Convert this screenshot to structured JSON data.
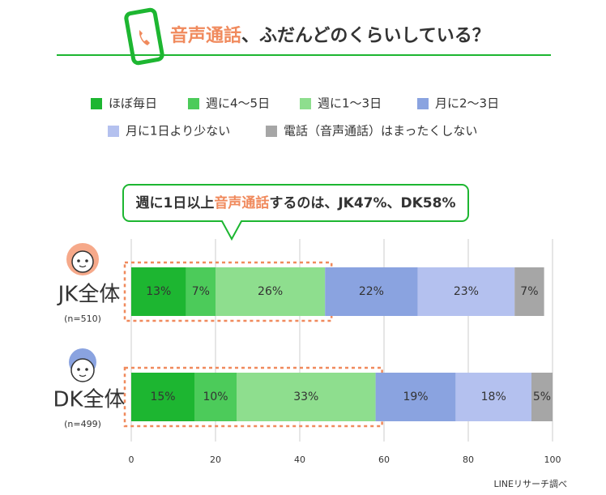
{
  "chart_data": {
    "type": "stacked-barh",
    "title": [
      "音声通話",
      "、ふだんどのくらいしている？"
    ],
    "callout": [
      "週に1日以上",
      "音声通話",
      "するのは、JK47%、DK58%"
    ],
    "categories": [
      "JK全体",
      "DK全体"
    ],
    "sample_sizes": [
      "(n=510)",
      "(n=499)"
    ],
    "series": [
      {
        "name": "ほぼ毎日",
        "color": "#1db631",
        "values": [
          13,
          15
        ],
        "value_labels": [
          "13%",
          "15%"
        ]
      },
      {
        "name": "週に4〜5日",
        "color": "#4ccb5a",
        "values": [
          7,
          10
        ],
        "value_labels": [
          "7%",
          "10%"
        ]
      },
      {
        "name": "週に1〜3日",
        "color": "#8ede8e",
        "values": [
          26,
          33
        ],
        "value_labels": [
          "26%",
          "33%"
        ]
      },
      {
        "name": "月に2〜3日",
        "color": "#8aa3e0",
        "values": [
          22,
          19
        ],
        "value_labels": [
          "22%",
          "19%"
        ]
      },
      {
        "name": "月に1日より少ない",
        "color": "#b4c1ef",
        "values": [
          23,
          18
        ],
        "value_labels": [
          "23%",
          "18%"
        ]
      },
      {
        "name": "電話（音声通話）はまったくしない",
        "color": "#a6a6a6",
        "values": [
          7,
          5
        ],
        "value_labels": [
          "7%",
          "5%"
        ]
      }
    ],
    "xlim": [
      0,
      100
    ],
    "xticks": [
      0,
      20,
      40,
      60,
      80,
      100
    ],
    "grid": true,
    "source": "LINEリサーチ調べ"
  }
}
